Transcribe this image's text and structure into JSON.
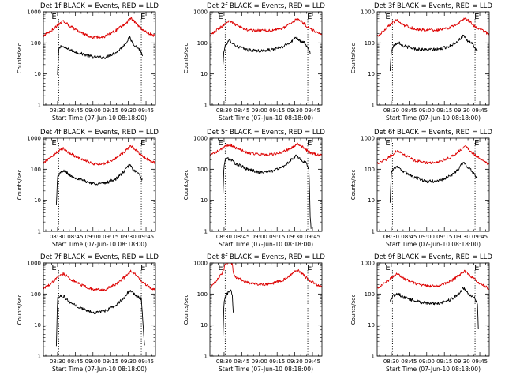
{
  "figure": {
    "colors": {
      "events": "#000000",
      "lld": "#dd0000",
      "axes": "#000000",
      "background": "#ffffff"
    }
  },
  "chart_data": [
    {
      "type": "line",
      "title": "Det 1f BLACK = Events, RED = LLD",
      "xlabel": "Start Time (07-Jun-10 08:18:00)",
      "ylabel": "Counts/sec",
      "x_unit": "UT time of day",
      "x_ticks": [
        "08:30",
        "08:45",
        "09:00",
        "09:15",
        "09:30",
        "09:45"
      ],
      "xlim": [
        "08:18",
        "09:53"
      ],
      "y_scale": "log",
      "ylim": [
        1,
        1000
      ],
      "y_ticks": [
        "1",
        "10",
        "100",
        "1000"
      ],
      "markers": [
        "E",
        "E"
      ],
      "marker_lines_at": [
        "08:31",
        "09:41"
      ],
      "series": [
        {
          "name": "Events",
          "color": "#000000",
          "start": "08:30",
          "end": "09:42",
          "x": [
            "08:30",
            "08:31",
            "08:33",
            "08:40",
            "08:50",
            "09:00",
            "09:10",
            "09:20",
            "09:27",
            "09:31",
            "09:33",
            "09:36",
            "09:40",
            "09:42"
          ],
          "y": [
            9,
            62,
            80,
            60,
            45,
            35,
            34,
            50,
            90,
            150,
            110,
            80,
            60,
            40
          ]
        },
        {
          "name": "LLD",
          "color": "#dd0000",
          "start": "08:18",
          "end": "09:53",
          "x": [
            "08:18",
            "08:25",
            "08:31",
            "08:35",
            "08:40",
            "08:50",
            "09:00",
            "09:10",
            "09:20",
            "09:28",
            "09:32",
            "09:36",
            "09:42",
            "09:50",
            "09:53"
          ],
          "y": [
            170,
            250,
            400,
            520,
            360,
            210,
            150,
            160,
            260,
            430,
            620,
            460,
            260,
            180,
            170
          ]
        }
      ]
    },
    {
      "type": "line",
      "title": "Det 2f BLACK = Events, RED = LLD",
      "xlabel": "Start Time (07-Jun-10 08:18:00)",
      "ylabel": "Counts/sec",
      "x_unit": "UT time of day",
      "x_ticks": [
        "08:30",
        "08:45",
        "09:00",
        "09:15",
        "09:30",
        "09:45"
      ],
      "xlim": [
        "08:18",
        "09:53"
      ],
      "y_scale": "log",
      "ylim": [
        1,
        1000
      ],
      "y_ticks": [
        "1",
        "10",
        "100",
        "1000"
      ],
      "markers": [
        "E",
        "E"
      ],
      "marker_lines_at": [
        "08:31",
        "09:41"
      ],
      "series": [
        {
          "name": "Events",
          "color": "#000000",
          "start": "08:29",
          "end": "09:43",
          "x": [
            "08:29",
            "08:30",
            "08:32",
            "08:35",
            "08:40",
            "08:50",
            "09:00",
            "09:10",
            "09:20",
            "09:27",
            "09:31",
            "09:34",
            "09:38",
            "09:43"
          ],
          "y": [
            17,
            60,
            95,
            120,
            80,
            60,
            55,
            60,
            75,
            110,
            160,
            120,
            100,
            50
          ]
        },
        {
          "name": "LLD",
          "color": "#dd0000",
          "start": "08:18",
          "end": "09:53",
          "x": [
            "08:18",
            "08:25",
            "08:31",
            "08:35",
            "08:40",
            "08:50",
            "09:00",
            "09:10",
            "09:20",
            "09:28",
            "09:32",
            "09:36",
            "09:42",
            "09:50",
            "09:53"
          ],
          "y": [
            170,
            280,
            420,
            520,
            370,
            260,
            250,
            250,
            300,
            450,
            600,
            480,
            300,
            210,
            190
          ]
        }
      ]
    },
    {
      "type": "line",
      "title": "Det 3f BLACK = Events, RED = LLD",
      "xlabel": "Start Time (07-Jun-10 08:18:00)",
      "ylabel": "Counts/sec",
      "x_unit": "UT time of day",
      "x_ticks": [
        "08:30",
        "08:45",
        "09:00",
        "09:15",
        "09:30",
        "09:45"
      ],
      "xlim": [
        "08:18",
        "09:53"
      ],
      "y_scale": "log",
      "ylim": [
        1,
        1000
      ],
      "y_ticks": [
        "1",
        "10",
        "100",
        "1000"
      ],
      "markers": [
        "E",
        "E"
      ],
      "marker_lines_at": [
        "08:31",
        "09:41"
      ],
      "series": [
        {
          "name": "Events",
          "color": "#000000",
          "start": "08:29",
          "end": "09:43",
          "x": [
            "08:29",
            "08:30",
            "08:32",
            "08:36",
            "08:40",
            "08:50",
            "09:00",
            "09:10",
            "09:20",
            "09:27",
            "09:31",
            "09:34",
            "09:38",
            "09:43"
          ],
          "y": [
            12,
            55,
            80,
            110,
            80,
            65,
            60,
            62,
            80,
            120,
            170,
            120,
            100,
            55
          ]
        },
        {
          "name": "LLD",
          "color": "#dd0000",
          "start": "08:18",
          "end": "09:53",
          "x": [
            "08:18",
            "08:25",
            "08:31",
            "08:35",
            "08:40",
            "08:50",
            "09:00",
            "09:10",
            "09:20",
            "09:28",
            "09:32",
            "09:36",
            "09:42",
            "09:50",
            "09:53"
          ],
          "y": [
            160,
            280,
            450,
            550,
            380,
            280,
            260,
            260,
            310,
            470,
            640,
            500,
            310,
            220,
            190
          ]
        }
      ]
    },
    {
      "type": "line",
      "title": "Det 4f BLACK = Events, RED = LLD",
      "xlabel": "Start Time (07-Jun-10 08:18:00)",
      "ylabel": "Counts/sec",
      "x_unit": "UT time of day",
      "x_ticks": [
        "08:30",
        "08:45",
        "09:00",
        "09:15",
        "09:30",
        "09:45"
      ],
      "xlim": [
        "08:18",
        "09:53"
      ],
      "y_scale": "log",
      "ylim": [
        1,
        1000
      ],
      "y_ticks": [
        "1",
        "10",
        "100",
        "1000"
      ],
      "markers": [
        "E",
        "E"
      ],
      "marker_lines_at": [
        "08:31",
        "09:41"
      ],
      "series": [
        {
          "name": "Events",
          "color": "#000000",
          "start": "08:29",
          "end": "09:42",
          "x": [
            "08:29",
            "08:30",
            "08:32",
            "08:36",
            "08:40",
            "08:50",
            "09:00",
            "09:10",
            "09:20",
            "09:27",
            "09:31",
            "09:34",
            "09:38",
            "09:42"
          ],
          "y": [
            7,
            55,
            75,
            90,
            65,
            45,
            35,
            35,
            50,
            90,
            140,
            100,
            75,
            45
          ]
        },
        {
          "name": "LLD",
          "color": "#dd0000",
          "start": "08:18",
          "end": "09:53",
          "x": [
            "08:18",
            "08:25",
            "08:31",
            "08:35",
            "08:40",
            "08:50",
            "09:00",
            "09:10",
            "09:20",
            "09:28",
            "09:32",
            "09:36",
            "09:42",
            "09:50",
            "09:53"
          ],
          "y": [
            160,
            260,
            380,
            480,
            330,
            210,
            150,
            150,
            230,
            400,
            580,
            430,
            260,
            170,
            160
          ]
        }
      ]
    },
    {
      "type": "line",
      "title": "Det 5f BLACK = Events, RED = LLD",
      "xlabel": "Start Time (07-Jun-10 08:18:00)",
      "ylabel": "Counts/sec",
      "x_unit": "UT time of day",
      "x_ticks": [
        "08:30",
        "08:45",
        "09:00",
        "09:15",
        "09:30",
        "09:45"
      ],
      "xlim": [
        "08:18",
        "09:53"
      ],
      "y_scale": "log",
      "ylim": [
        1,
        1000
      ],
      "y_ticks": [
        "1",
        "10",
        "100",
        "1000"
      ],
      "markers": [
        "E",
        "E"
      ],
      "marker_lines_at": [
        "08:31",
        "09:41"
      ],
      "series": [
        {
          "name": "Events",
          "color": "#000000",
          "start": "08:29",
          "end": "09:44",
          "x": [
            "08:29",
            "08:30",
            "08:32",
            "08:36",
            "08:40",
            "08:50",
            "09:00",
            "09:10",
            "09:20",
            "09:27",
            "09:31",
            "09:36",
            "09:40",
            "09:42",
            "09:43",
            "09:44"
          ],
          "y": [
            12,
            140,
            230,
            200,
            150,
            100,
            80,
            85,
            120,
            200,
            270,
            190,
            150,
            100,
            3,
            1
          ]
        },
        {
          "name": "LLD",
          "color": "#dd0000",
          "start": "08:18",
          "end": "09:53",
          "x": [
            "08:18",
            "08:25",
            "08:31",
            "08:35",
            "08:40",
            "08:50",
            "09:00",
            "09:10",
            "09:20",
            "09:28",
            "09:32",
            "09:36",
            "09:42",
            "09:50",
            "09:53"
          ],
          "y": [
            280,
            380,
            550,
            620,
            480,
            340,
            300,
            300,
            360,
            520,
            650,
            530,
            360,
            290,
            280
          ]
        }
      ]
    },
    {
      "type": "line",
      "title": "Det 6f BLACK = Events, RED = LLD",
      "xlabel": "Start Time (07-Jun-10 08:18:00)",
      "ylabel": "Counts/sec",
      "x_unit": "UT time of day",
      "x_ticks": [
        "08:30",
        "08:45",
        "09:00",
        "09:15",
        "09:30",
        "09:45"
      ],
      "xlim": [
        "08:18",
        "09:53"
      ],
      "y_scale": "log",
      "ylim": [
        1,
        1000
      ],
      "y_ticks": [
        "1",
        "10",
        "100",
        "1000"
      ],
      "markers": [
        "E",
        "E"
      ],
      "marker_lines_at": [
        "08:31",
        "09:41"
      ],
      "series": [
        {
          "name": "Events",
          "color": "#000000",
          "start": "08:29",
          "end": "09:43",
          "x": [
            "08:29",
            "08:30",
            "08:32",
            "08:36",
            "08:40",
            "08:50",
            "09:00",
            "09:10",
            "09:20",
            "09:27",
            "09:31",
            "09:34",
            "09:38",
            "09:43"
          ],
          "y": [
            8,
            80,
            110,
            120,
            85,
            55,
            40,
            42,
            60,
            100,
            170,
            120,
            90,
            50
          ]
        },
        {
          "name": "LLD",
          "color": "#dd0000",
          "start": "08:18",
          "end": "09:53",
          "x": [
            "08:18",
            "08:25",
            "08:31",
            "08:35",
            "08:40",
            "08:50",
            "09:00",
            "09:10",
            "09:20",
            "09:28",
            "09:32",
            "09:36",
            "09:42",
            "09:50",
            "09:53"
          ],
          "y": [
            150,
            200,
            300,
            400,
            300,
            190,
            160,
            170,
            240,
            400,
            560,
            420,
            260,
            160,
            140
          ]
        }
      ]
    },
    {
      "type": "line",
      "title": "Det 7f BLACK = Events, RED = LLD",
      "xlabel": "Start Time (07-Jun-10 08:18:00)",
      "ylabel": "Counts/sec",
      "x_unit": "UT time of day",
      "x_ticks": [
        "08:30",
        "08:45",
        "09:00",
        "09:15",
        "09:30",
        "09:45"
      ],
      "xlim": [
        "08:18",
        "09:53"
      ],
      "y_scale": "log",
      "ylim": [
        1,
        1000
      ],
      "y_ticks": [
        "1",
        "10",
        "100",
        "1000"
      ],
      "markers": [
        "E",
        "E"
      ],
      "marker_lines_at": [
        "08:31",
        "09:41"
      ],
      "series": [
        {
          "name": "Events",
          "color": "#000000",
          "start": "08:29",
          "end": "09:44",
          "x": [
            "08:29",
            "08:30",
            "08:32",
            "08:36",
            "08:40",
            "08:50",
            "09:00",
            "09:10",
            "09:20",
            "09:27",
            "09:31",
            "09:36",
            "09:41",
            "09:43",
            "09:44"
          ],
          "y": [
            2,
            70,
            90,
            80,
            55,
            35,
            25,
            28,
            45,
            80,
            130,
            90,
            70,
            5,
            2
          ]
        },
        {
          "name": "LLD",
          "color": "#dd0000",
          "start": "08:18",
          "end": "09:53",
          "x": [
            "08:18",
            "08:25",
            "08:31",
            "08:35",
            "08:40",
            "08:50",
            "09:00",
            "09:10",
            "09:20",
            "09:28",
            "09:32",
            "09:36",
            "09:42",
            "09:50",
            "09:53"
          ],
          "y": [
            150,
            230,
            360,
            460,
            320,
            200,
            140,
            140,
            210,
            380,
            550,
            420,
            240,
            150,
            130
          ]
        }
      ]
    },
    {
      "type": "line",
      "title": "Det 8f BLACK = Events, RED = LLD",
      "xlabel": "Start Time (07-Jun-10 08:18:00)",
      "ylabel": "Counts/sec",
      "x_unit": "UT time of day",
      "x_ticks": [
        "08:30",
        "08:45",
        "09:00",
        "09:15",
        "09:30",
        "09:45"
      ],
      "xlim": [
        "08:18",
        "09:53"
      ],
      "y_scale": "log",
      "ylim": [
        1,
        1000
      ],
      "y_ticks": [
        "1",
        "10",
        "100",
        "1000"
      ],
      "markers": [
        "E",
        "E"
      ],
      "marker_lines_at": [
        "08:31",
        "09:41"
      ],
      "series": [
        {
          "name": "Events",
          "color": "#000000",
          "start": "08:29",
          "end": "08:38",
          "x": [
            "08:29",
            "08:30",
            "08:32",
            "08:34",
            "08:36",
            "08:37",
            "08:38"
          ],
          "y": [
            3,
            60,
            90,
            120,
            140,
            90,
            20
          ]
        },
        {
          "name": "LLD",
          "color": "#dd0000",
          "start": "08:18",
          "end": "09:53",
          "x": [
            "08:18",
            "08:25",
            "08:30",
            "08:31",
            "08:36",
            "08:37",
            "08:38",
            "08:40",
            "08:50",
            "09:00",
            "09:10",
            "09:20",
            "09:28",
            "09:32",
            "09:36",
            "09:42",
            "09:50",
            "09:53"
          ],
          "y": [
            160,
            300,
            600,
            1000,
            1000,
            1000,
            450,
            350,
            230,
            200,
            210,
            280,
            450,
            600,
            450,
            280,
            190,
            170
          ]
        }
      ]
    },
    {
      "type": "line",
      "title": "Det 9f BLACK = Events, RED = LLD",
      "xlabel": "Start Time (07-Jun-10 08:18:00)",
      "ylabel": "Counts/sec",
      "x_unit": "UT time of day",
      "x_ticks": [
        "08:30",
        "08:45",
        "09:00",
        "09:15",
        "09:30",
        "09:45"
      ],
      "xlim": [
        "08:18",
        "09:53"
      ],
      "y_scale": "log",
      "ylim": [
        1,
        1000
      ],
      "y_ticks": [
        "1",
        "10",
        "100",
        "1000"
      ],
      "markers": [
        "E",
        "E"
      ],
      "marker_lines_at": [
        "08:31",
        "09:41"
      ],
      "series": [
        {
          "name": "Events",
          "color": "#000000",
          "start": "08:29",
          "end": "09:44",
          "x": [
            "08:29",
            "08:30",
            "08:32",
            "08:36",
            "08:40",
            "08:50",
            "09:00",
            "09:10",
            "09:20",
            "09:27",
            "09:31",
            "09:36",
            "09:40",
            "09:43",
            "09:44"
          ],
          "y": [
            55,
            70,
            90,
            100,
            80,
            60,
            50,
            50,
            65,
            100,
            160,
            100,
            80,
            50,
            4
          ]
        },
        {
          "name": "LLD",
          "color": "#dd0000",
          "start": "08:18",
          "end": "09:53",
          "x": [
            "08:18",
            "08:25",
            "08:31",
            "08:35",
            "08:40",
            "08:50",
            "09:00",
            "09:10",
            "09:20",
            "09:28",
            "09:32",
            "09:36",
            "09:42",
            "09:50",
            "09:53"
          ],
          "y": [
            150,
            230,
            360,
            450,
            320,
            220,
            180,
            180,
            250,
            420,
            560,
            420,
            260,
            170,
            150
          ]
        }
      ]
    }
  ]
}
